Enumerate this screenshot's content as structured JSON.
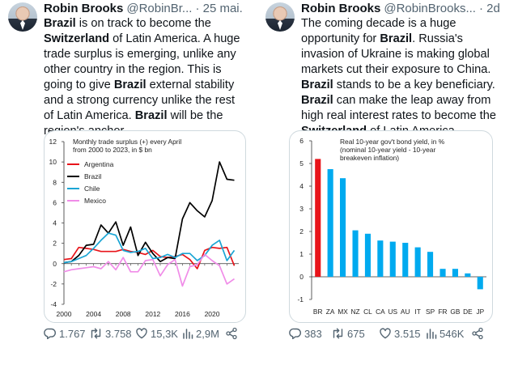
{
  "tweets": [
    {
      "author": "Robin Brooks",
      "handle": "@RobinBr...",
      "time": "· 25 mai.",
      "segments": [
        {
          "t": "Brazil",
          "b": true
        },
        {
          "t": " is on track to become the ",
          "b": false
        },
        {
          "t": "Switzerland",
          "b": true
        },
        {
          "t": " of Latin America. A huge trade surplus is emerging, unlike any other country in the region. This is going to give ",
          "b": false
        },
        {
          "t": "Brazil",
          "b": true
        },
        {
          "t": " external stability and a strong currency unlike the rest of Latin America. ",
          "b": false
        },
        {
          "t": "Brazil",
          "b": true
        },
        {
          "t": " will be the region's anchor...",
          "b": false
        }
      ],
      "actions": {
        "replies": "1.767",
        "reposts": "3.758",
        "likes": "15,3K",
        "views": "2,9M"
      }
    },
    {
      "author": "Robin Brooks",
      "handle": "@RobinBrooks...",
      "time": "· 2d",
      "segments": [
        {
          "t": "The coming decade is a huge opportunity for ",
          "b": false
        },
        {
          "t": "Brazil",
          "b": true
        },
        {
          "t": ". Russia's invasion of Ukraine is making global markets cut their exposure to China. ",
          "b": false
        },
        {
          "t": "Brazil",
          "b": true
        },
        {
          "t": " stands to be a key beneficiary. ",
          "b": false
        },
        {
          "t": "Brazil",
          "b": true
        },
        {
          "t": " can make the leap away from high real interest rates to become the ",
          "b": false
        },
        {
          "t": "Switzerland",
          "b": true
        },
        {
          "t": " of Latin America...",
          "b": false
        }
      ],
      "actions": {
        "replies": "383",
        "reposts": "675",
        "likes": "3.515",
        "views": "546K"
      }
    }
  ],
  "icons": {
    "reply": "reply-icon",
    "repost": "repost-icon",
    "like": "heart-icon",
    "views": "views-icon",
    "share": "share-icon"
  },
  "chart_data": [
    {
      "type": "line",
      "title": "Monthly trade surplus (+) every April from 2000 to 2023, in $ bn",
      "xlabel": "",
      "ylabel": "",
      "x": [
        2000,
        2001,
        2002,
        2003,
        2004,
        2005,
        2006,
        2007,
        2008,
        2009,
        2010,
        2011,
        2012,
        2013,
        2014,
        2015,
        2016,
        2017,
        2018,
        2019,
        2020,
        2021,
        2022,
        2023
      ],
      "xticks": [
        2000,
        2004,
        2008,
        2012,
        2016,
        2020
      ],
      "ylim": [
        -4,
        12
      ],
      "yticks": [
        -4,
        -2,
        0,
        2,
        4,
        6,
        8,
        10,
        12
      ],
      "legend": "top-left",
      "grid": false,
      "series": [
        {
          "name": "Argentina",
          "color": "#e8141a",
          "values": [
            0.4,
            0.5,
            1.6,
            1.5,
            1.4,
            1.2,
            1.2,
            1.2,
            1.4,
            1.2,
            1.1,
            0.9,
            1.3,
            0.7,
            0.6,
            0.7,
            0.9,
            0.4,
            -0.5,
            1.3,
            1.6,
            1.5,
            1.6,
            -0.2
          ]
        },
        {
          "name": "Brazil",
          "color": "#000000",
          "values": [
            0.1,
            0.2,
            0.8,
            1.8,
            1.9,
            3.8,
            3.0,
            4.1,
            1.8,
            3.6,
            0.8,
            2.1,
            1.0,
            0.2,
            0.6,
            0.5,
            4.4,
            6.0,
            5.2,
            4.6,
            6.2,
            10.0,
            8.3,
            8.2
          ]
        },
        {
          "name": "Chile",
          "color": "#1aa5d4",
          "values": [
            0.1,
            0.2,
            0.5,
            0.8,
            1.5,
            2.3,
            3.0,
            2.8,
            1.3,
            1.1,
            1.2,
            1.5,
            0.5,
            0.6,
            0.9,
            0.6,
            1.0,
            1.0,
            0.3,
            0.8,
            1.8,
            2.3,
            0.3,
            1.3
          ]
        },
        {
          "name": "Mexico",
          "color": "#f08ce8",
          "values": [
            -0.8,
            -0.6,
            -0.5,
            -0.4,
            -0.3,
            -0.5,
            0.2,
            -0.6,
            0.6,
            -0.8,
            -0.8,
            0.3,
            0.4,
            -1.2,
            -0.1,
            0.4,
            -2.2,
            -0.3,
            -0.1,
            0.9,
            0.3,
            -0.2,
            -2.0,
            -1.5
          ]
        }
      ]
    },
    {
      "type": "bar",
      "title": "Real 10-year gov't bond yield, in % (nominal 10-year yield - 10-year breakeven inflation)",
      "xlabel": "",
      "ylabel": "",
      "categories": [
        "BR",
        "ZA",
        "MX",
        "NZ",
        "CL",
        "CA",
        "US",
        "AU",
        "IT",
        "SP",
        "FR",
        "GB",
        "DE",
        "JP"
      ],
      "values": [
        5.2,
        4.75,
        4.35,
        2.05,
        1.9,
        1.6,
        1.55,
        1.5,
        1.3,
        1.1,
        0.35,
        0.35,
        0.15,
        -0.55
      ],
      "colors": {
        "highlight": "#e8141a",
        "default": "#00aaef"
      },
      "ylim": [
        -1,
        6
      ],
      "yticks": [
        -1,
        0,
        1,
        2,
        3,
        4,
        5,
        6
      ],
      "grid": false
    }
  ]
}
